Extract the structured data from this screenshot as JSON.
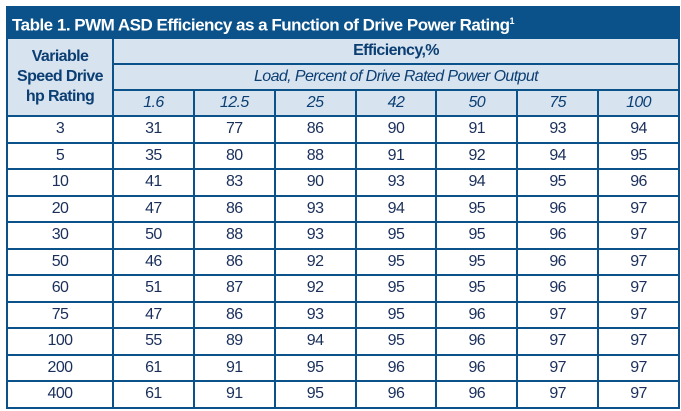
{
  "title": {
    "text": "Table 1.  PWM ASD Efficiency as a Function of Drive Power Rating",
    "footnote": "1"
  },
  "header": {
    "row_label": "Variable Speed Drive hp Rating",
    "efficiency": "Efficiency,%",
    "load": "Load, Percent of Drive Rated Power Output",
    "loads": [
      "1.6",
      "12.5",
      "25",
      "42",
      "50",
      "75",
      "100"
    ]
  },
  "rows": [
    [
      "3",
      "31",
      "77",
      "86",
      "90",
      "91",
      "93",
      "94"
    ],
    [
      "5",
      "35",
      "80",
      "88",
      "91",
      "92",
      "94",
      "95"
    ],
    [
      "10",
      "41",
      "83",
      "90",
      "93",
      "94",
      "95",
      "96"
    ],
    [
      "20",
      "47",
      "86",
      "93",
      "94",
      "95",
      "96",
      "97"
    ],
    [
      "30",
      "50",
      "88",
      "93",
      "95",
      "95",
      "96",
      "97"
    ],
    [
      "50",
      "46",
      "86",
      "92",
      "95",
      "95",
      "96",
      "97"
    ],
    [
      "60",
      "51",
      "87",
      "92",
      "95",
      "95",
      "96",
      "97"
    ],
    [
      "75",
      "47",
      "86",
      "93",
      "95",
      "96",
      "97",
      "97"
    ],
    [
      "100",
      "55",
      "89",
      "94",
      "95",
      "96",
      "97",
      "97"
    ],
    [
      "200",
      "61",
      "91",
      "95",
      "96",
      "96",
      "97",
      "97"
    ],
    [
      "400",
      "61",
      "91",
      "95",
      "96",
      "96",
      "97",
      "97"
    ]
  ],
  "colors": {
    "border": "#0b528a",
    "header_bg": "#d7e3ef"
  }
}
